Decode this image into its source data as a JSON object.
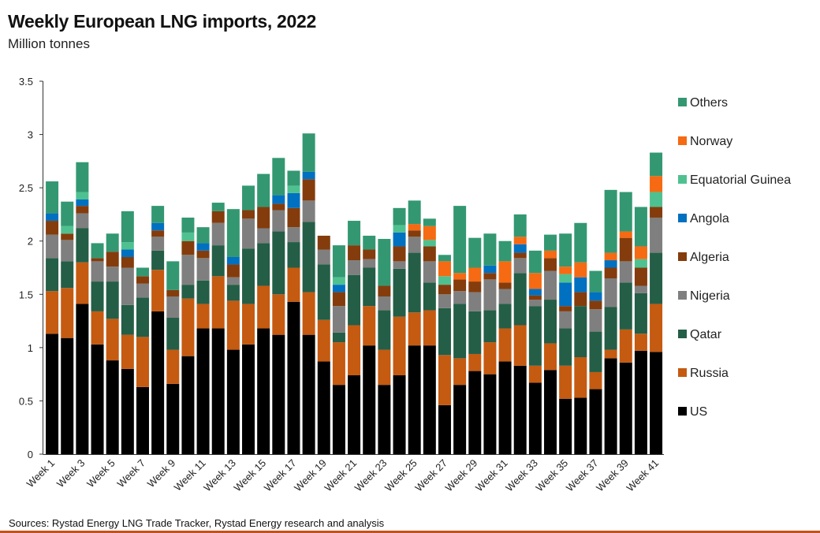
{
  "header": {
    "title": "Weekly European LNG imports, 2022",
    "subtitle": "Million tonnes"
  },
  "footer": {
    "source": "Sources:  Rystad Energy LNG Trade Tracker, Rystad Energy research and analysis"
  },
  "chart_data": {
    "type": "bar",
    "stacked": true,
    "title": "Weekly European LNG imports, 2022",
    "subtitle": "Million tonnes",
    "xlabel": "",
    "ylabel": "",
    "ylim": [
      0,
      3.5
    ],
    "yticks": [
      "0",
      "0.5",
      "1",
      "1.5",
      "2",
      "2.5",
      "3",
      "3.5"
    ],
    "grid": false,
    "legend_placement": "right",
    "categories": [
      "Week 1",
      "Week 2",
      "Week 3",
      "Week 4",
      "Week 5",
      "Week 6",
      "Week 7",
      "Week 8",
      "Week 9",
      "Week 10",
      "Week 11",
      "Week 12",
      "Week 13",
      "Week 14",
      "Week 15",
      "Week 16",
      "Week 17",
      "Week 18",
      "Week 19",
      "Week 20",
      "Week 21",
      "Week 22",
      "Week 23",
      "Week 24",
      "Week 25",
      "Week 26",
      "Week 27",
      "Week 28",
      "Week 29",
      "Week 30",
      "Week 31",
      "Week 32",
      "Week 33",
      "Week 34",
      "Week 35",
      "Week 36",
      "Week 37",
      "Week 38",
      "Week 39",
      "Week 40",
      "Week 41"
    ],
    "series": [
      {
        "name": "US",
        "color": "#000000",
        "values": [
          1.13,
          1.09,
          1.41,
          1.03,
          0.88,
          0.8,
          0.63,
          1.34,
          0.66,
          0.92,
          1.18,
          1.18,
          0.98,
          1.03,
          1.18,
          1.12,
          1.43,
          1.12,
          0.87,
          0.65,
          0.74,
          1.02,
          0.65,
          0.74,
          1.02,
          1.02,
          0.46,
          0.65,
          0.78,
          0.75,
          0.87,
          0.83,
          0.67,
          0.79,
          0.52,
          0.53,
          0.61,
          0.9,
          0.86,
          0.97,
          0.96
        ]
      },
      {
        "name": "Russia",
        "color": "#c55a11",
        "values": [
          0.4,
          0.47,
          0.39,
          0.31,
          0.39,
          0.32,
          0.47,
          0.39,
          0.32,
          0.54,
          0.23,
          0.49,
          0.46,
          0.38,
          0.4,
          0.38,
          0.32,
          0.4,
          0.39,
          0.4,
          0.47,
          0.37,
          0.33,
          0.55,
          0.31,
          0.33,
          0.47,
          0.25,
          0.16,
          0.3,
          0.31,
          0.38,
          0.16,
          0.25,
          0.31,
          0.38,
          0.16,
          0.08,
          0.31,
          0.16,
          0.45
        ]
      },
      {
        "name": "Qatar",
        "color": "#245e47",
        "values": [
          0.31,
          0.25,
          0.32,
          0.28,
          0.35,
          0.28,
          0.37,
          0.18,
          0.3,
          0.13,
          0.22,
          0.29,
          0.15,
          0.52,
          0.4,
          0.59,
          0.24,
          0.66,
          0.52,
          0.09,
          0.47,
          0.36,
          0.37,
          0.45,
          0.56,
          0.26,
          0.44,
          0.51,
          0.4,
          0.3,
          0.23,
          0.49,
          0.56,
          0.41,
          0.35,
          0.48,
          0.38,
          0.4,
          0.44,
          0.38,
          0.48
        ]
      },
      {
        "name": "Nigeria",
        "color": "#7f7f7f",
        "values": [
          0.22,
          0.2,
          0.14,
          0.19,
          0.14,
          0.35,
          0.13,
          0.13,
          0.2,
          0.28,
          0.21,
          0.21,
          0.07,
          0.28,
          0.14,
          0.2,
          0.14,
          0.2,
          0.14,
          0.25,
          0.14,
          0.08,
          0.13,
          0.07,
          0.15,
          0.2,
          0.13,
          0.12,
          0.18,
          0.29,
          0.14,
          0.14,
          0.06,
          0.27,
          0.16,
          0,
          0.21,
          0.27,
          0.2,
          0.07,
          0.33
        ]
      },
      {
        "name": "Algeria",
        "color": "#843c0c",
        "values": [
          0.13,
          0.06,
          0.07,
          0.03,
          0.14,
          0.1,
          0.07,
          0.06,
          0.06,
          0.13,
          0.07,
          0.11,
          0.12,
          0.08,
          0.2,
          0.06,
          0.18,
          0.2,
          0.13,
          0.13,
          0.14,
          0.09,
          0.1,
          0.14,
          0.06,
          0.14,
          0.09,
          0.11,
          0.1,
          0.06,
          0.06,
          0.05,
          0.04,
          0.12,
          0.05,
          0.13,
          0.08,
          0.1,
          0.22,
          0.17,
          0.1
        ]
      },
      {
        "name": "Angola",
        "color": "#0070c0",
        "values": [
          0.07,
          0,
          0.06,
          0,
          0,
          0.07,
          0,
          0.07,
          0,
          0,
          0.07,
          0,
          0.07,
          0,
          0,
          0.08,
          0.14,
          0.07,
          0,
          0.07,
          0,
          0,
          0,
          0.13,
          0,
          0,
          0,
          0,
          0,
          0.07,
          0,
          0.08,
          0.06,
          0,
          0.22,
          0.14,
          0.08,
          0.07,
          0,
          0,
          0
        ]
      },
      {
        "name": "Equatorial Guinea",
        "color": "#4fc190",
        "values": [
          0,
          0.07,
          0.07,
          0,
          0,
          0.07,
          0,
          0,
          0,
          0.08,
          0,
          0,
          0,
          0,
          0,
          0,
          0.07,
          0,
          0,
          0.07,
          0,
          0,
          0,
          0.07,
          0,
          0.06,
          0.08,
          0,
          0,
          0,
          0,
          0,
          0,
          0,
          0.08,
          0,
          0,
          0,
          0,
          0.08,
          0.14
        ]
      },
      {
        "name": "Norway",
        "color": "#f56a12",
        "values": [
          0,
          0,
          0,
          0,
          0,
          0,
          0,
          0,
          0,
          0,
          0,
          0,
          0,
          0,
          0,
          0,
          0,
          0,
          0,
          0,
          0,
          0,
          0,
          0,
          0.06,
          0.13,
          0.14,
          0.06,
          0.13,
          0,
          0.2,
          0.07,
          0.15,
          0.07,
          0.07,
          0.14,
          0,
          0.07,
          0.06,
          0.12,
          0.15
        ]
      },
      {
        "name": "Others",
        "color": "#339872",
        "values": [
          0.3,
          0.23,
          0.28,
          0.14,
          0.17,
          0.29,
          0.08,
          0.16,
          0.27,
          0.14,
          0.15,
          0.08,
          0.45,
          0.23,
          0.31,
          0.35,
          0.14,
          0.36,
          0,
          0.3,
          0.23,
          0.13,
          0.44,
          0.16,
          0.22,
          0.07,
          0.06,
          0.63,
          0.28,
          0.3,
          0.19,
          0.21,
          0.21,
          0.15,
          0.31,
          0.37,
          0.2,
          0.59,
          0.37,
          0.37,
          0.22
        ]
      }
    ],
    "legend_order": [
      "Others",
      "Norway",
      "Equatorial Guinea",
      "Angola",
      "Algeria",
      "Nigeria",
      "Qatar",
      "Russia",
      "US"
    ]
  }
}
